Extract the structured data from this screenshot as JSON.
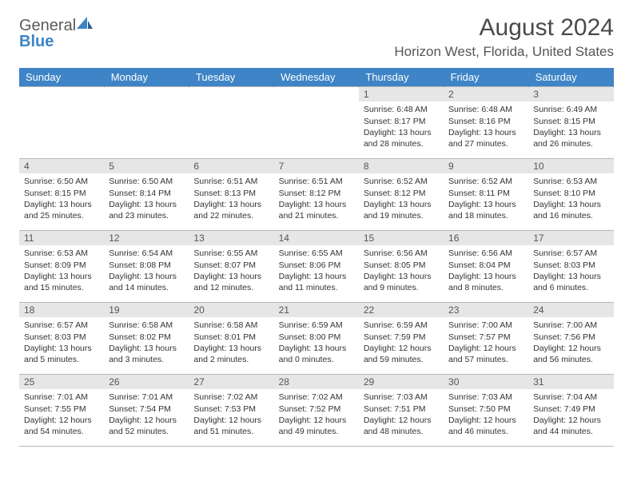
{
  "logo": {
    "text_gray": "General",
    "text_blue": "Blue",
    "glyph_color": "#3e84c6"
  },
  "header": {
    "month_title": "August 2024",
    "location": "Horizon West, Florida, United States"
  },
  "styling": {
    "header_row_bg": "#3e84c6",
    "header_row_text": "#ffffff",
    "daynum_bg": "#e6e6e6",
    "daynum_text": "#555555",
    "body_text": "#333333",
    "border_color": "#b8b8b8",
    "page_bg": "#ffffff",
    "font_family": "Arial",
    "daybody_fontsize_pt": 8,
    "header_fontsize_pt": 10,
    "month_title_fontsize_pt": 23,
    "location_fontsize_pt": 13
  },
  "calendar": {
    "weekday_labels": [
      "Sunday",
      "Monday",
      "Tuesday",
      "Wednesday",
      "Thursday",
      "Friday",
      "Saturday"
    ],
    "weeks": [
      [
        {
          "empty": true
        },
        {
          "empty": true
        },
        {
          "empty": true
        },
        {
          "empty": true
        },
        {
          "day": "1",
          "sunrise": "Sunrise: 6:48 AM",
          "sunset": "Sunset: 8:17 PM",
          "daylight1": "Daylight: 13 hours",
          "daylight2": "and 28 minutes."
        },
        {
          "day": "2",
          "sunrise": "Sunrise: 6:48 AM",
          "sunset": "Sunset: 8:16 PM",
          "daylight1": "Daylight: 13 hours",
          "daylight2": "and 27 minutes."
        },
        {
          "day": "3",
          "sunrise": "Sunrise: 6:49 AM",
          "sunset": "Sunset: 8:15 PM",
          "daylight1": "Daylight: 13 hours",
          "daylight2": "and 26 minutes."
        }
      ],
      [
        {
          "day": "4",
          "sunrise": "Sunrise: 6:50 AM",
          "sunset": "Sunset: 8:15 PM",
          "daylight1": "Daylight: 13 hours",
          "daylight2": "and 25 minutes."
        },
        {
          "day": "5",
          "sunrise": "Sunrise: 6:50 AM",
          "sunset": "Sunset: 8:14 PM",
          "daylight1": "Daylight: 13 hours",
          "daylight2": "and 23 minutes."
        },
        {
          "day": "6",
          "sunrise": "Sunrise: 6:51 AM",
          "sunset": "Sunset: 8:13 PM",
          "daylight1": "Daylight: 13 hours",
          "daylight2": "and 22 minutes."
        },
        {
          "day": "7",
          "sunrise": "Sunrise: 6:51 AM",
          "sunset": "Sunset: 8:12 PM",
          "daylight1": "Daylight: 13 hours",
          "daylight2": "and 21 minutes."
        },
        {
          "day": "8",
          "sunrise": "Sunrise: 6:52 AM",
          "sunset": "Sunset: 8:12 PM",
          "daylight1": "Daylight: 13 hours",
          "daylight2": "and 19 minutes."
        },
        {
          "day": "9",
          "sunrise": "Sunrise: 6:52 AM",
          "sunset": "Sunset: 8:11 PM",
          "daylight1": "Daylight: 13 hours",
          "daylight2": "and 18 minutes."
        },
        {
          "day": "10",
          "sunrise": "Sunrise: 6:53 AM",
          "sunset": "Sunset: 8:10 PM",
          "daylight1": "Daylight: 13 hours",
          "daylight2": "and 16 minutes."
        }
      ],
      [
        {
          "day": "11",
          "sunrise": "Sunrise: 6:53 AM",
          "sunset": "Sunset: 8:09 PM",
          "daylight1": "Daylight: 13 hours",
          "daylight2": "and 15 minutes."
        },
        {
          "day": "12",
          "sunrise": "Sunrise: 6:54 AM",
          "sunset": "Sunset: 8:08 PM",
          "daylight1": "Daylight: 13 hours",
          "daylight2": "and 14 minutes."
        },
        {
          "day": "13",
          "sunrise": "Sunrise: 6:55 AM",
          "sunset": "Sunset: 8:07 PM",
          "daylight1": "Daylight: 13 hours",
          "daylight2": "and 12 minutes."
        },
        {
          "day": "14",
          "sunrise": "Sunrise: 6:55 AM",
          "sunset": "Sunset: 8:06 PM",
          "daylight1": "Daylight: 13 hours",
          "daylight2": "and 11 minutes."
        },
        {
          "day": "15",
          "sunrise": "Sunrise: 6:56 AM",
          "sunset": "Sunset: 8:05 PM",
          "daylight1": "Daylight: 13 hours",
          "daylight2": "and 9 minutes."
        },
        {
          "day": "16",
          "sunrise": "Sunrise: 6:56 AM",
          "sunset": "Sunset: 8:04 PM",
          "daylight1": "Daylight: 13 hours",
          "daylight2": "and 8 minutes."
        },
        {
          "day": "17",
          "sunrise": "Sunrise: 6:57 AM",
          "sunset": "Sunset: 8:03 PM",
          "daylight1": "Daylight: 13 hours",
          "daylight2": "and 6 minutes."
        }
      ],
      [
        {
          "day": "18",
          "sunrise": "Sunrise: 6:57 AM",
          "sunset": "Sunset: 8:03 PM",
          "daylight1": "Daylight: 13 hours",
          "daylight2": "and 5 minutes."
        },
        {
          "day": "19",
          "sunrise": "Sunrise: 6:58 AM",
          "sunset": "Sunset: 8:02 PM",
          "daylight1": "Daylight: 13 hours",
          "daylight2": "and 3 minutes."
        },
        {
          "day": "20",
          "sunrise": "Sunrise: 6:58 AM",
          "sunset": "Sunset: 8:01 PM",
          "daylight1": "Daylight: 13 hours",
          "daylight2": "and 2 minutes."
        },
        {
          "day": "21",
          "sunrise": "Sunrise: 6:59 AM",
          "sunset": "Sunset: 8:00 PM",
          "daylight1": "Daylight: 13 hours",
          "daylight2": "and 0 minutes."
        },
        {
          "day": "22",
          "sunrise": "Sunrise: 6:59 AM",
          "sunset": "Sunset: 7:59 PM",
          "daylight1": "Daylight: 12 hours",
          "daylight2": "and 59 minutes."
        },
        {
          "day": "23",
          "sunrise": "Sunrise: 7:00 AM",
          "sunset": "Sunset: 7:57 PM",
          "daylight1": "Daylight: 12 hours",
          "daylight2": "and 57 minutes."
        },
        {
          "day": "24",
          "sunrise": "Sunrise: 7:00 AM",
          "sunset": "Sunset: 7:56 PM",
          "daylight1": "Daylight: 12 hours",
          "daylight2": "and 56 minutes."
        }
      ],
      [
        {
          "day": "25",
          "sunrise": "Sunrise: 7:01 AM",
          "sunset": "Sunset: 7:55 PM",
          "daylight1": "Daylight: 12 hours",
          "daylight2": "and 54 minutes."
        },
        {
          "day": "26",
          "sunrise": "Sunrise: 7:01 AM",
          "sunset": "Sunset: 7:54 PM",
          "daylight1": "Daylight: 12 hours",
          "daylight2": "and 52 minutes."
        },
        {
          "day": "27",
          "sunrise": "Sunrise: 7:02 AM",
          "sunset": "Sunset: 7:53 PM",
          "daylight1": "Daylight: 12 hours",
          "daylight2": "and 51 minutes."
        },
        {
          "day": "28",
          "sunrise": "Sunrise: 7:02 AM",
          "sunset": "Sunset: 7:52 PM",
          "daylight1": "Daylight: 12 hours",
          "daylight2": "and 49 minutes."
        },
        {
          "day": "29",
          "sunrise": "Sunrise: 7:03 AM",
          "sunset": "Sunset: 7:51 PM",
          "daylight1": "Daylight: 12 hours",
          "daylight2": "and 48 minutes."
        },
        {
          "day": "30",
          "sunrise": "Sunrise: 7:03 AM",
          "sunset": "Sunset: 7:50 PM",
          "daylight1": "Daylight: 12 hours",
          "daylight2": "and 46 minutes."
        },
        {
          "day": "31",
          "sunrise": "Sunrise: 7:04 AM",
          "sunset": "Sunset: 7:49 PM",
          "daylight1": "Daylight: 12 hours",
          "daylight2": "and 44 minutes."
        }
      ]
    ]
  }
}
